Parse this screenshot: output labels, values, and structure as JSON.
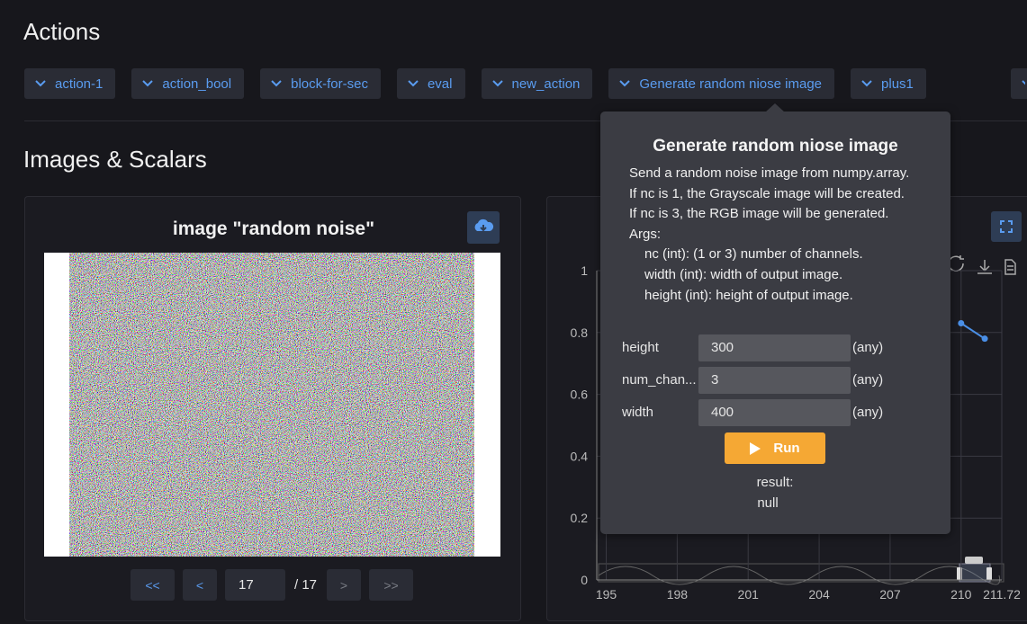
{
  "actions": {
    "title": "Actions",
    "buttons": [
      "action-1",
      "action_bool",
      "block-for-sec",
      "eval",
      "new_action",
      "Generate random niose image",
      "plus1"
    ]
  },
  "images_scalars": {
    "title": "Images & Scalars"
  },
  "image_card": {
    "title": "image \"random noise\"",
    "pager": {
      "first": "<<",
      "prev": "<",
      "current": "17",
      "total": "/ 17",
      "next": ">",
      "last": ">>"
    }
  },
  "chart_data": {
    "type": "line",
    "x": [
      210,
      211
    ],
    "series": [
      {
        "color": "#4a8fe7",
        "values": [
          0.83,
          0.78
        ]
      }
    ],
    "xlim": [
      194.6,
      211.72
    ],
    "ylim": [
      0,
      1
    ],
    "xticks": [
      195,
      198,
      201,
      204,
      207,
      210,
      211.72
    ],
    "yticks": [
      0,
      0.2,
      0.4,
      0.6,
      0.8,
      1
    ],
    "grid": true
  },
  "popup": {
    "title": "Generate random niose image",
    "description": [
      "Send a random noise image from numpy.array.",
      "If nc is 1, the Grayscale image will be created.",
      "If nc is 3, the RGB image will be generated.",
      "Args:",
      "nc (int): (1 or 3) number of channels.",
      "width (int): width of output image.",
      "height (int): height of output image."
    ],
    "params": [
      {
        "label": "height",
        "value": "300",
        "type": "(any)"
      },
      {
        "label": "num_chan...",
        "value": "3",
        "type": "(any)"
      },
      {
        "label": "width",
        "value": "400",
        "type": "(any)"
      }
    ],
    "run": "Run",
    "result_label": "result:",
    "result": "null"
  }
}
